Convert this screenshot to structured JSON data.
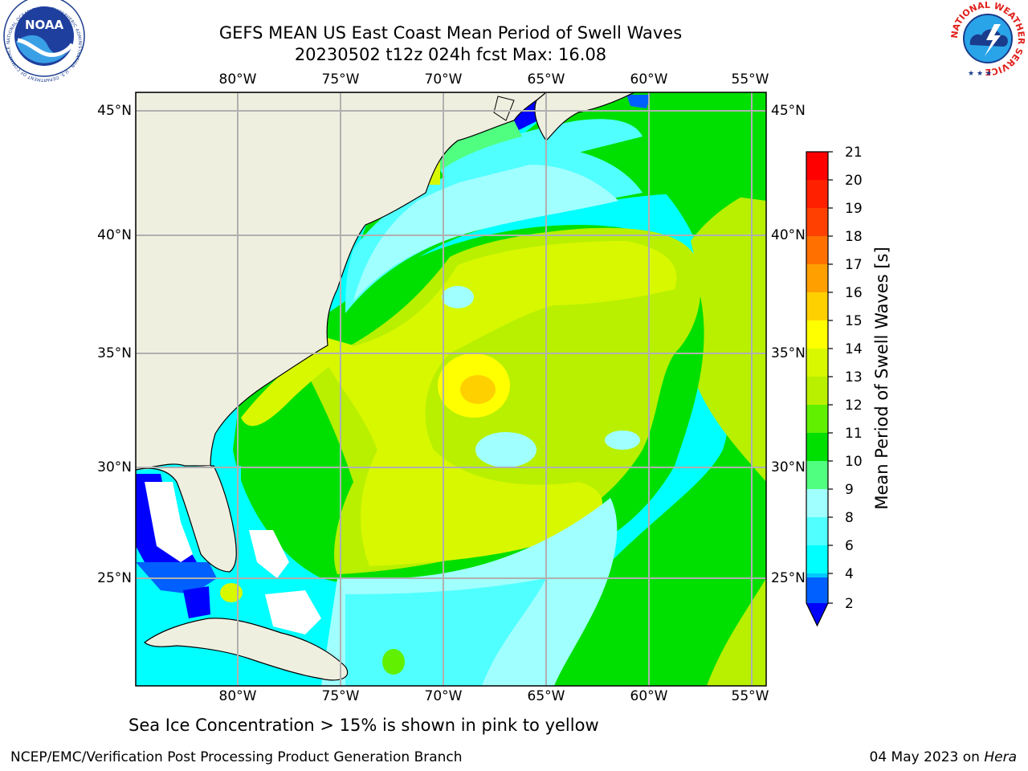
{
  "title": {
    "line1": "GEFS MEAN US East Coast Mean Period of Swell Waves",
    "line2": "20230502 t12z 024h fcst   Max: 16.08"
  },
  "axes": {
    "longitude_labels": [
      "80°W",
      "75°W",
      "70°W",
      "65°W",
      "60°W",
      "55°W"
    ],
    "latitude_labels": [
      "45°N",
      "40°N",
      "35°N",
      "30°N",
      "25°N"
    ]
  },
  "colorbar": {
    "label": "Mean Period of Swell Waves [s]",
    "ticks": [
      "21",
      "20",
      "19",
      "18",
      "17",
      "16",
      "15",
      "14",
      "13",
      "12",
      "11",
      "10",
      "9",
      "8",
      "6",
      "4",
      "2"
    ],
    "colors": {
      "2": "#0060ff",
      "4": "#00c8ff",
      "6": "#00ffff",
      "8": "#50ffff",
      "9": "#a0ffff",
      "10": "#50ff80",
      "11": "#00e000",
      "12": "#60f000",
      "13": "#b8f000",
      "14": "#d8f800",
      "15": "#ffff00",
      "16": "#ffd000",
      "17": "#ffa000",
      "18": "#ff7000",
      "19": "#ff4000",
      "20": "#ff2000",
      "21": "#ff0000",
      "under": "#0000ff"
    }
  },
  "note": "Sea Ice Concentration > 15% is shown in pink to yellow",
  "credits": {
    "left": "NCEP/EMC/Verification Post Processing Product Generation Branch",
    "date": "04 May 2023 on ",
    "machine": "Hera"
  },
  "logos": {
    "noaa_text": "NOAA",
    "noaa_ring": "NATIONAL OCEANIC AND ATMOSPHERIC ADMINISTRATION · U.S. DEPARTMENT OF COMMERCE",
    "nws_ring": "NATIONAL WEATHER SERVICE"
  }
}
